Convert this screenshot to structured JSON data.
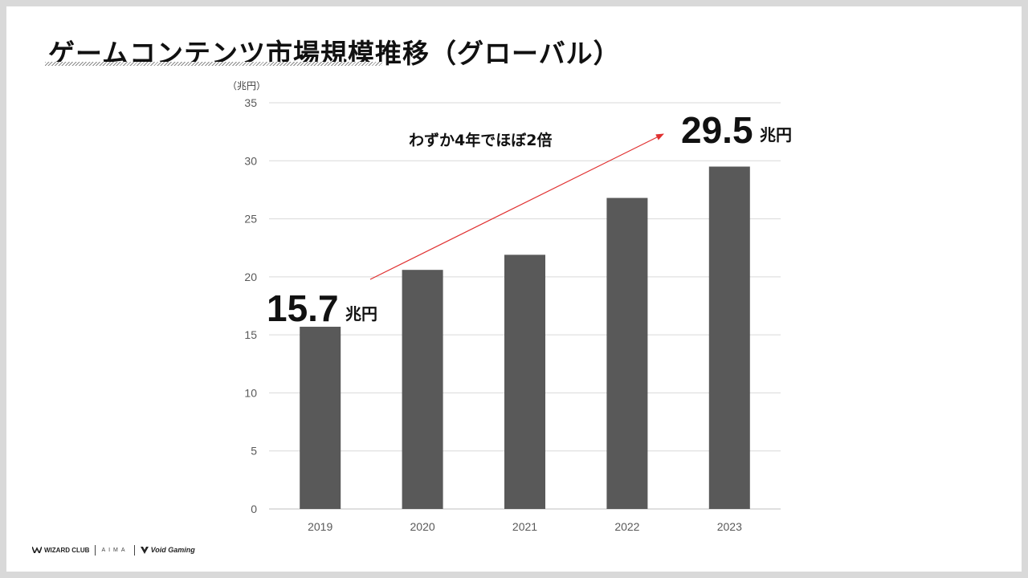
{
  "slide": {
    "title": "ゲームコンテンツ市場規模推移（グローバル）"
  },
  "chart_data": {
    "type": "bar",
    "categories": [
      "2019",
      "2020",
      "2021",
      "2022",
      "2023"
    ],
    "values": [
      15.7,
      20.6,
      21.9,
      26.8,
      29.5
    ],
    "ylim": [
      0,
      35
    ],
    "yticks": [
      0,
      5,
      10,
      15,
      20,
      25,
      30,
      35
    ],
    "y_unit_label": "（兆円）",
    "grid": true,
    "bar_color": "#595959",
    "annotations": {
      "start_value": "15.7",
      "start_unit": "兆円",
      "end_value": "29.5",
      "end_unit": "兆円",
      "trend_text": "わずか4年でほぼ2倍",
      "arrow_color": "#e03030"
    }
  },
  "footer": {
    "logos": [
      "WIZARD CLUB",
      "AIMA",
      "Void Gaming"
    ]
  }
}
